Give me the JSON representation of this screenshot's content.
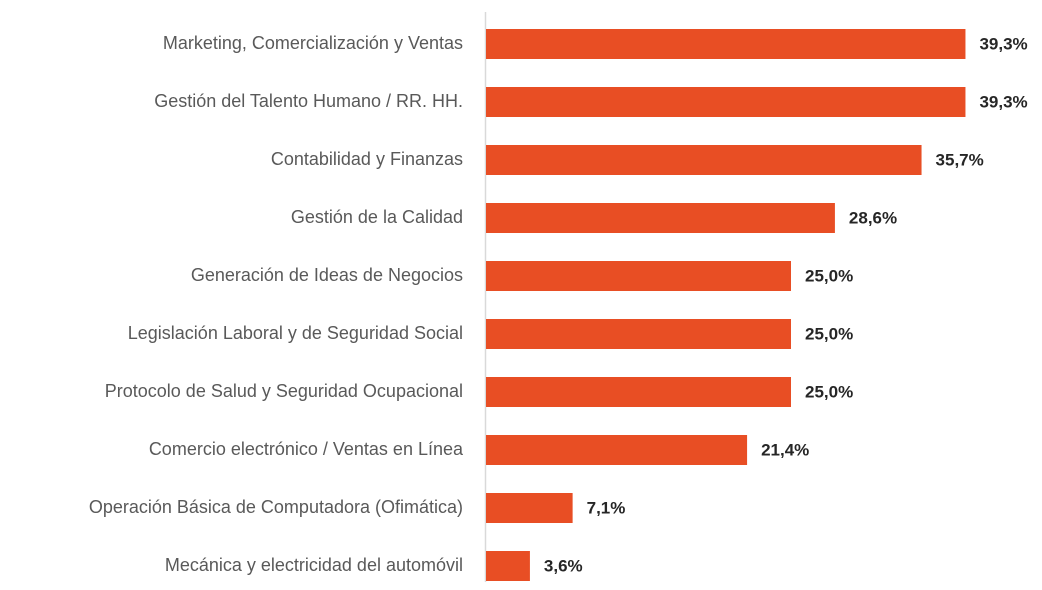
{
  "chart_data": {
    "type": "bar",
    "orientation": "horizontal",
    "categories": [
      "Marketing, Comercialización y Ventas",
      "Gestión del Talento Humano / RR. HH.",
      "Contabilidad y Finanzas",
      "Gestión de la Calidad",
      "Generación de Ideas de Negocios",
      "Legislación Laboral y de Seguridad Social",
      "Protocolo de Salud y Seguridad Ocupacional",
      "Comercio electrónico / Ventas en Línea",
      "Operación Básica de Computadora (Ofimática)",
      "Mecánica y electricidad del automóvil"
    ],
    "values": [
      39.3,
      39.3,
      35.7,
      28.6,
      25.0,
      25.0,
      25.0,
      21.4,
      7.1,
      3.6
    ],
    "value_labels": [
      "39,3%",
      "39,3%",
      "35,7%",
      "28,6%",
      "25,0%",
      "25,0%",
      "25,0%",
      "21,4%",
      "7,1%",
      "3,6%"
    ],
    "color": "#e84e24"
  }
}
